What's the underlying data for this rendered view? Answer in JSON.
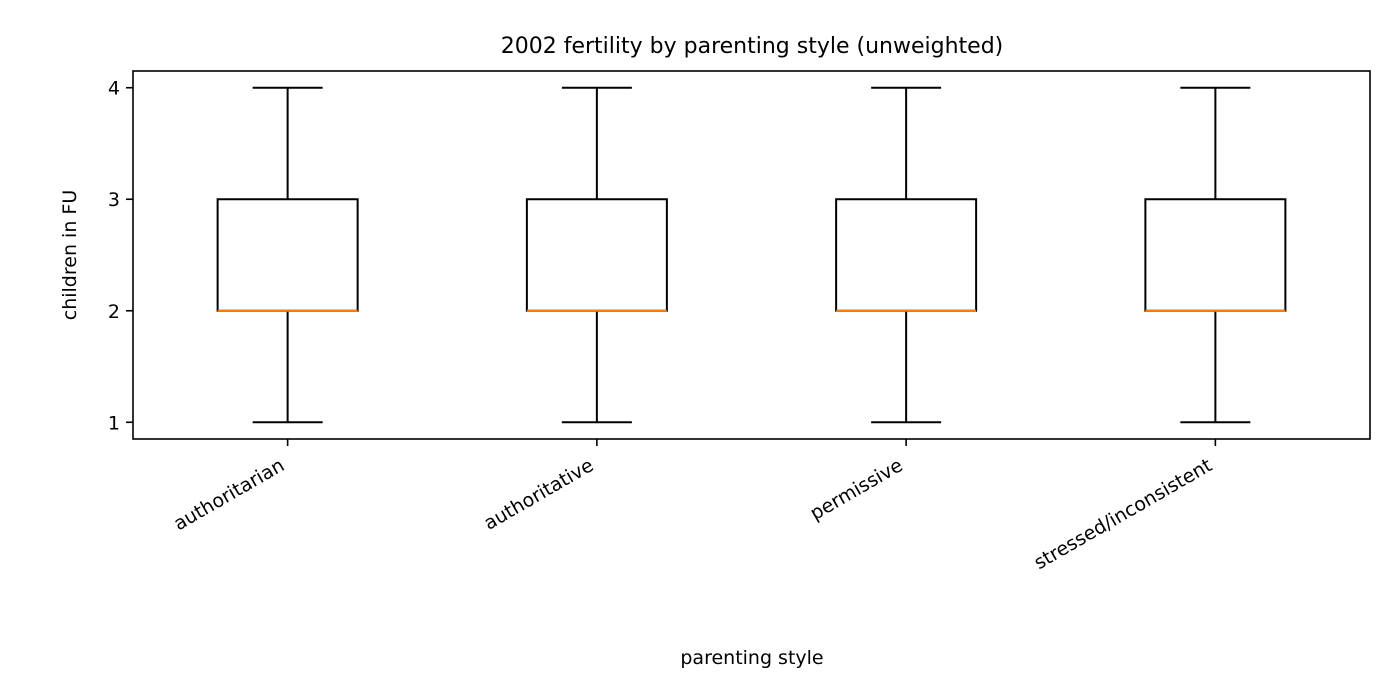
{
  "chart_data": {
    "type": "boxplot",
    "title": "2002 fertility by parenting style (unweighted)",
    "xlabel": "parenting style",
    "ylabel": "children in FU",
    "categories": [
      "authoritarian",
      "authoritative",
      "permissive",
      "stressed/inconsistent"
    ],
    "boxes": [
      {
        "whisker_low": 1,
        "q1": 2,
        "median": 2,
        "q3": 3,
        "whisker_high": 4
      },
      {
        "whisker_low": 1,
        "q1": 2,
        "median": 2,
        "q3": 3,
        "whisker_high": 4
      },
      {
        "whisker_low": 1,
        "q1": 2,
        "median": 2,
        "q3": 3,
        "whisker_high": 4
      },
      {
        "whisker_low": 1,
        "q1": 2,
        "median": 2,
        "q3": 3,
        "whisker_high": 4
      }
    ],
    "y_ticks": [
      1,
      2,
      3,
      4
    ],
    "ylim": [
      0.85,
      4.15
    ],
    "grid": false,
    "colors": {
      "box": "#000000",
      "median": "#ff7f0e",
      "axes": "#000000"
    }
  }
}
